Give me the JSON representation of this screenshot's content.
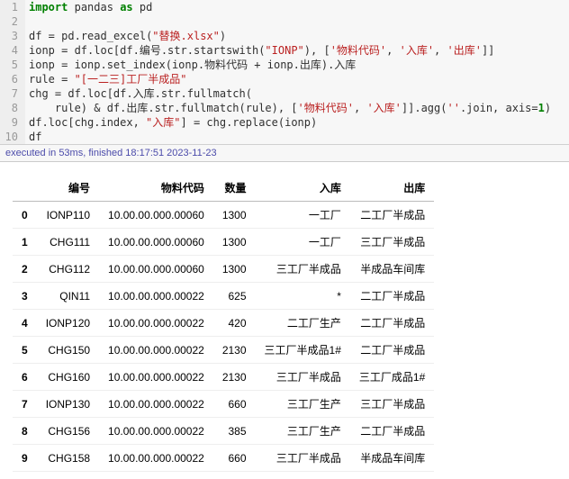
{
  "code_lines": 10,
  "code": {
    "l1": {
      "import": "import",
      "pandas": "pandas",
      "as": "as",
      "pd": "pd"
    },
    "l3": {
      "df": "df",
      "eq": " = ",
      "pd": "pd",
      "re": ".read_excel(",
      "s": "\"替换.xlsx\"",
      "cl": ")"
    },
    "l4": {
      "a": "ionp = df.loc[df.编号.str.startswith(",
      "s1": "\"IONP\"",
      "b": "), [",
      "s2": "'物料代码'",
      "c": ", ",
      "s3": "'入库'",
      "d": ", ",
      "s4": "'出库'",
      "e": "]]"
    },
    "l5": {
      "a": "ionp = ionp.set_index(ionp.物料代码 + ionp.出库).入库"
    },
    "l6": {
      "a": "rule = ",
      "s": "\"[一二三]工厂半成品\""
    },
    "l7": {
      "a": "chg = df.loc[df.入库.str.fullmatch("
    },
    "l8": {
      "a": "    rule) & df.出库.str.fullmatch(rule), [",
      "s1": "'物料代码'",
      "b": ", ",
      "s2": "'入库'",
      "c": "]].agg(",
      "s3": "''",
      "d": ".join, axis=",
      "n": "1",
      "e": ")"
    },
    "l9": {
      "a": "df.loc[chg.index, ",
      "s": "\"入库\"",
      "b": "] = chg.replace(ionp)"
    },
    "l10": {
      "a": "df"
    }
  },
  "status": "executed in 53ms, finished 18:17:51 2023-11-23",
  "table": {
    "columns": [
      "编号",
      "物料代码",
      "数量",
      "入库",
      "出库"
    ],
    "index": [
      "0",
      "1",
      "2",
      "3",
      "4",
      "5",
      "6",
      "7",
      "8",
      "9"
    ],
    "rows": [
      [
        "IONP110",
        "10.00.00.000.00060",
        "1300",
        "一工厂",
        "二工厂半成品"
      ],
      [
        "CHG111",
        "10.00.00.000.00060",
        "1300",
        "一工厂",
        "三工厂半成品"
      ],
      [
        "CHG112",
        "10.00.00.000.00060",
        "1300",
        "三工厂半成品",
        "半成品车间库"
      ],
      [
        "QIN11",
        "10.00.00.000.00022",
        "625",
        "*",
        "二工厂半成品"
      ],
      [
        "IONP120",
        "10.00.00.000.00022",
        "420",
        "二工厂生产",
        "二工厂半成品"
      ],
      [
        "CHG150",
        "10.00.00.000.00022",
        "2130",
        "三工厂半成品1#",
        "二工厂半成品"
      ],
      [
        "CHG160",
        "10.00.00.000.00022",
        "2130",
        "三工厂半成品",
        "三工厂成品1#"
      ],
      [
        "IONP130",
        "10.00.00.000.00022",
        "660",
        "三工厂生产",
        "三工厂半成品"
      ],
      [
        "CHG156",
        "10.00.00.000.00022",
        "385",
        "三工厂生产",
        "二工厂半成品"
      ],
      [
        "CHG158",
        "10.00.00.000.00022",
        "660",
        "三工厂半成品",
        "半成品车间库"
      ]
    ]
  }
}
